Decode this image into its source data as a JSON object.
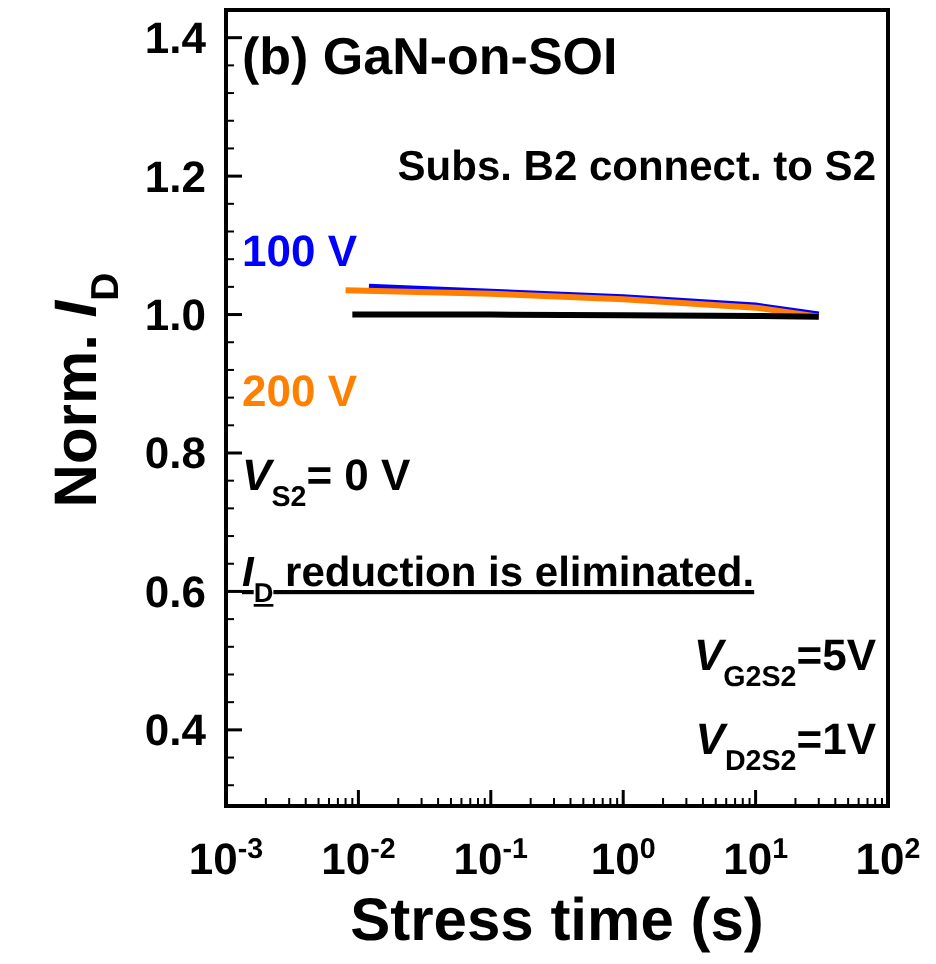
{
  "chart_data": {
    "type": "line",
    "title": "(b) GaN-on-SOI",
    "xlabel": "Stress time (s)",
    "ylabel": "Norm. I$_{D}$",
    "log": "x",
    "xlim": [
      0.001,
      100
    ],
    "ylim": [
      0.29,
      1.44
    ],
    "xticks": [
      {
        "value": 0.001,
        "label": "10$^{-3}$"
      },
      {
        "value": 0.01,
        "label": "10$^{-2}$"
      },
      {
        "value": 0.1,
        "label": "10$^{-1}$"
      },
      {
        "value": 1,
        "label": "10$^{0}$"
      },
      {
        "value": 10,
        "label": "10$^{1}$"
      },
      {
        "value": 100,
        "label": "10$^{2}$"
      }
    ],
    "yticks": [
      {
        "value": 0.4,
        "label": "0.4"
      },
      {
        "value": 0.6,
        "label": "0.6"
      },
      {
        "value": 0.8,
        "label": "0.8"
      },
      {
        "value": 1.0,
        "label": "1.0"
      },
      {
        "value": 1.2,
        "label": "1.2"
      },
      {
        "value": 1.4,
        "label": "1.4"
      }
    ],
    "marker": "none",
    "line_style": "solid",
    "series": [
      {
        "name": "100 V",
        "color": "#0000ff",
        "x": [
          0.012,
          0.1,
          1,
          10,
          30
        ],
        "values": [
          1.04,
          1.033,
          1.025,
          1.013,
          1.0
        ]
      },
      {
        "name": "200 V",
        "color": "#ff8000",
        "x": [
          0.008,
          0.1,
          1,
          10,
          30
        ],
        "values": [
          1.035,
          1.03,
          1.022,
          1.01,
          0.997
        ]
      },
      {
        "name": "V$_{S2}$= 0 V",
        "color": "#000000",
        "x": [
          0.009,
          0.1,
          1,
          10,
          30
        ],
        "values": [
          1.0,
          1.0,
          0.999,
          0.998,
          0.997
        ]
      }
    ],
    "annotations": [
      "Subs. B2 connect. to S2",
      "I$_{D}$ reduction is eliminated.",
      "V$_{G2S2}$=5V",
      "V$_{D2S2}$=1V"
    ]
  }
}
